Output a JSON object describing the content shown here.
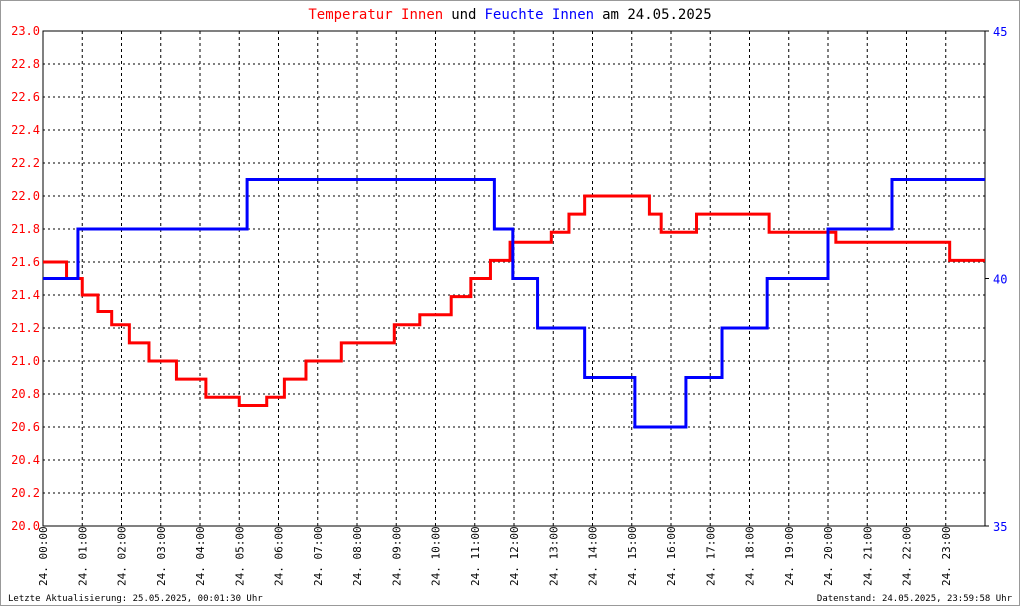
{
  "chart_data": {
    "type": "line",
    "title_parts": [
      "und",
      "am 24.05.2025"
    ],
    "footer_left": "Letzte Aktualisierung: 25.05.2025, 00:01:30 Uhr",
    "footer_right": "Datenstand: 24.05.2025, 23:59:58 Uhr",
    "xlim": [
      0,
      24
    ],
    "xticks": [
      {
        "value": 0,
        "label": "24. 00:00"
      },
      {
        "value": 1,
        "label": "24. 01:00"
      },
      {
        "value": 2,
        "label": "24. 02:00"
      },
      {
        "value": 3,
        "label": "24. 03:00"
      },
      {
        "value": 4,
        "label": "24. 04:00"
      },
      {
        "value": 5,
        "label": "24. 05:00"
      },
      {
        "value": 6,
        "label": "24. 06:00"
      },
      {
        "value": 7,
        "label": "24. 07:00"
      },
      {
        "value": 8,
        "label": "24. 08:00"
      },
      {
        "value": 9,
        "label": "24. 09:00"
      },
      {
        "value": 10,
        "label": "24. 10:00"
      },
      {
        "value": 11,
        "label": "24. 11:00"
      },
      {
        "value": 12,
        "label": "24. 12:00"
      },
      {
        "value": 13,
        "label": "24. 13:00"
      },
      {
        "value": 14,
        "label": "24. 14:00"
      },
      {
        "value": 15,
        "label": "24. 15:00"
      },
      {
        "value": 16,
        "label": "24. 16:00"
      },
      {
        "value": 17,
        "label": "24. 17:00"
      },
      {
        "value": 18,
        "label": "24. 18:00"
      },
      {
        "value": 19,
        "label": "24. 19:00"
      },
      {
        "value": 20,
        "label": "24. 20:00"
      },
      {
        "value": 21,
        "label": "24. 21:00"
      },
      {
        "value": 22,
        "label": "24. 22:00"
      },
      {
        "value": 23,
        "label": "24. 23:00"
      }
    ],
    "ylim": [
      20,
      23
    ],
    "yticks": [
      {
        "value": 20,
        "label": "20.0"
      },
      20.2,
      20.4,
      20.6,
      20.8,
      {
        "value": 21,
        "label": "21.0"
      },
      21.2,
      21.4,
      21.6,
      21.8,
      {
        "value": 22,
        "label": "22.0"
      },
      22.2,
      22.4,
      22.6,
      22.8,
      {
        "value": 23,
        "label": "23.0"
      }
    ],
    "y2lim": [
      35,
      45
    ],
    "y2ticks": [
      35,
      40,
      45
    ],
    "grid": true,
    "series": [
      {
        "name": "Temperatur Innen",
        "color": "#ff0000",
        "x": [
          0,
          0.6,
          0.6,
          1.0,
          1.0,
          1.4,
          1.4,
          1.75,
          1.75,
          2.2,
          2.2,
          2.7,
          2.7,
          3.4,
          3.4,
          4.15,
          4.15,
          5.0,
          5.0,
          5.7,
          5.7,
          6.15,
          6.15,
          6.7,
          6.7,
          7.6,
          7.6,
          8.95,
          8.95,
          9.6,
          9.6,
          10.4,
          10.4,
          10.9,
          10.9,
          11.4,
          11.4,
          11.9,
          11.9,
          12.95,
          12.95,
          13.4,
          13.4,
          13.8,
          13.8,
          15.45,
          15.45,
          15.75,
          15.75,
          16.65,
          16.65,
          18.5,
          18.5,
          20.2,
          20.2,
          23.1,
          23.1,
          24
        ],
        "values": [
          21.6,
          21.6,
          21.5,
          21.5,
          21.4,
          21.4,
          21.3,
          21.3,
          21.22,
          21.22,
          21.11,
          21.11,
          21.0,
          21.0,
          20.89,
          20.89,
          20.78,
          20.78,
          20.73,
          20.73,
          20.78,
          20.78,
          20.89,
          20.89,
          21.0,
          21.0,
          21.11,
          21.11,
          21.22,
          21.22,
          21.28,
          21.28,
          21.39,
          21.39,
          21.5,
          21.5,
          21.61,
          21.61,
          21.72,
          21.72,
          21.78,
          21.78,
          21.89,
          21.89,
          22.0,
          22.0,
          21.89,
          21.89,
          21.78,
          21.78,
          21.89,
          21.89,
          21.78,
          21.78,
          21.72,
          21.72,
          21.61,
          21.61
        ]
      },
      {
        "name": "Feuchte Innen",
        "color": "#0000ff",
        "axis": "y2",
        "x": [
          0,
          0.89,
          0.89,
          5.2,
          5.2,
          11.5,
          11.5,
          11.97,
          11.97,
          12.6,
          12.6,
          13.8,
          13.8,
          15.08,
          15.08,
          16.38,
          16.38,
          17.3,
          17.3,
          18.45,
          18.45,
          20.0,
          20.0,
          21.63,
          21.63,
          24
        ],
        "values": [
          40,
          40,
          41,
          41,
          42,
          42,
          41,
          41,
          40,
          40,
          39,
          39,
          38,
          38,
          37,
          37,
          38,
          38,
          39,
          39,
          40,
          40,
          41,
          41,
          42,
          42
        ]
      }
    ]
  }
}
